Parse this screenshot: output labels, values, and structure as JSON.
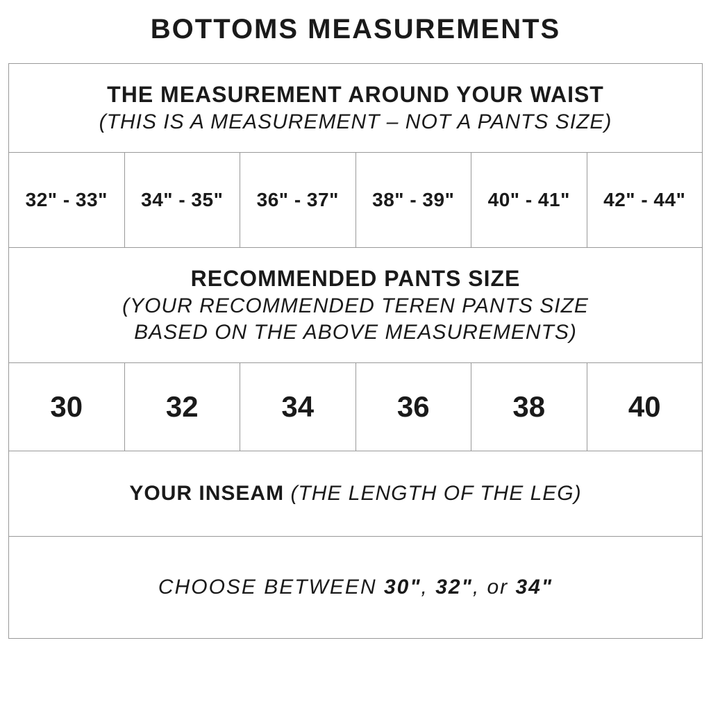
{
  "title": "BOTTOMS MEASUREMENTS",
  "waist": {
    "heading": "THE MEASUREMENT AROUND YOUR WAIST",
    "sub": "(THIS IS A MEASUREMENT – NOT A PANTS SIZE)",
    "values": [
      "32\" - 33\"",
      "34\" - 35\"",
      "36\" - 37\"",
      "38\" - 39\"",
      "40\" - 41\"",
      "42\" - 44\""
    ]
  },
  "pants": {
    "heading": "RECOMMENDED PANTS SIZE",
    "sub1": "(YOUR RECOMMENDED TEREN PANTS SIZE",
    "sub2": "BASED ON THE ABOVE MEASUREMENTS)",
    "values": [
      "30",
      "32",
      "34",
      "36",
      "38",
      "40"
    ]
  },
  "inseam": {
    "heading": "YOUR INSEAM",
    "sub": "(THE LENGTH OF THE LEG)",
    "choice_prefix": "CHOOSE BETWEEN ",
    "opt1": "30\"",
    "sep1": ", ",
    "opt2": "32\"",
    "sep2": ", or ",
    "opt3": "34\""
  },
  "colors": {
    "border": "#999999",
    "text": "#1a1a1a",
    "background": "#ffffff"
  }
}
